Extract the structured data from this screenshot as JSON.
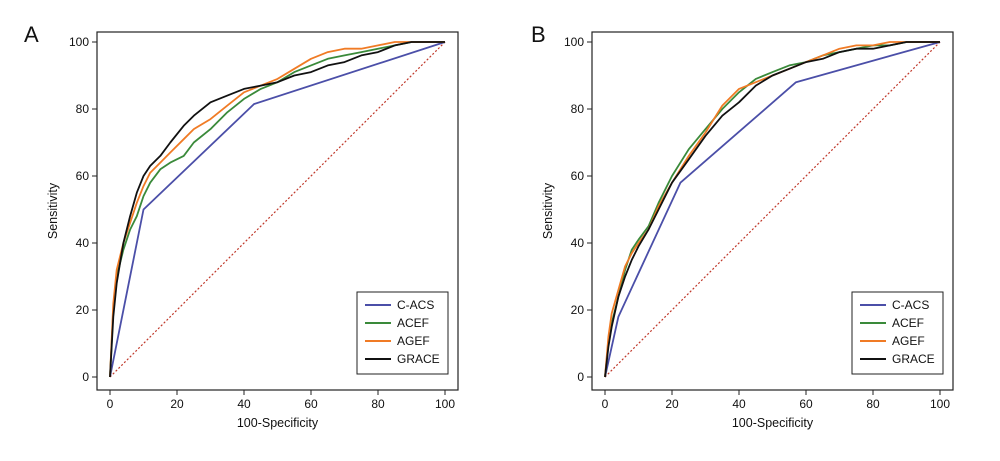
{
  "colors": {
    "C-ACS": "#4b4fa8",
    "ACEF": "#3a8a3a",
    "AGEF": "#f07b25",
    "GRACE": "#111111",
    "reference": "#c0392b",
    "axis": "#222222"
  },
  "chart_data": [
    {
      "type": "line",
      "panel_label": "A",
      "title": "",
      "xlabel": "100-Specificity",
      "ylabel": "Sensitivity",
      "xlim": [
        0,
        100
      ],
      "ylim": [
        0,
        100
      ],
      "xticks": [
        "0",
        "20",
        "40",
        "60",
        "80",
        "100"
      ],
      "yticks": [
        "0",
        "20",
        "40",
        "60",
        "80",
        "100"
      ],
      "grid": false,
      "legend_position": "bottom-right",
      "reference_line": {
        "x": [
          0,
          100
        ],
        "y": [
          0,
          100
        ],
        "style": "dotted"
      },
      "series": [
        {
          "name": "C-ACS",
          "x": [
            0,
            10,
            43,
            100
          ],
          "y": [
            0,
            50,
            81.5,
            100
          ]
        },
        {
          "name": "ACEF",
          "x": [
            0,
            1,
            2,
            4,
            6,
            8,
            10,
            12,
            15,
            18,
            22,
            25,
            30,
            35,
            40,
            45,
            50,
            55,
            60,
            65,
            70,
            75,
            80,
            85,
            90,
            95,
            100
          ],
          "y": [
            0,
            20,
            30,
            38,
            44,
            48,
            54,
            58,
            62,
            64,
            66,
            70,
            74,
            79,
            83,
            86,
            88,
            91,
            93,
            95,
            96,
            97,
            98,
            99,
            100,
            100,
            100
          ]
        },
        {
          "name": "AGEF",
          "x": [
            0,
            1,
            2,
            4,
            6,
            8,
            10,
            12,
            15,
            18,
            22,
            25,
            30,
            35,
            40,
            45,
            50,
            55,
            60,
            65,
            70,
            75,
            80,
            85,
            90,
            95,
            100
          ],
          "y": [
            0,
            22,
            32,
            40,
            46,
            52,
            57,
            61,
            64,
            67,
            71,
            74,
            77,
            81,
            85,
            87,
            89,
            92,
            95,
            97,
            98,
            98,
            99,
            100,
            100,
            100,
            100
          ]
        },
        {
          "name": "GRACE",
          "x": [
            0,
            1,
            2,
            4,
            6,
            8,
            10,
            12,
            15,
            18,
            22,
            25,
            30,
            35,
            40,
            45,
            50,
            55,
            60,
            65,
            70,
            75,
            80,
            85,
            90,
            95,
            100
          ],
          "y": [
            0,
            18,
            28,
            40,
            48,
            55,
            60,
            63,
            66,
            70,
            75,
            78,
            82,
            84,
            86,
            87,
            88,
            90,
            91,
            93,
            94,
            96,
            97,
            99,
            100,
            100,
            100
          ]
        }
      ]
    },
    {
      "type": "line",
      "panel_label": "B",
      "title": "",
      "xlabel": "100-Specificity",
      "ylabel": "Sensitivity",
      "xlim": [
        0,
        100
      ],
      "ylim": [
        0,
        100
      ],
      "xticks": [
        "0",
        "20",
        "40",
        "60",
        "80",
        "100"
      ],
      "yticks": [
        "0",
        "20",
        "40",
        "60",
        "80",
        "100"
      ],
      "grid": false,
      "legend_position": "bottom-right",
      "reference_line": {
        "x": [
          0,
          100
        ],
        "y": [
          0,
          100
        ],
        "style": "dotted"
      },
      "series": [
        {
          "name": "C-ACS",
          "x": [
            0,
            4,
            22.5,
            57,
            100
          ],
          "y": [
            0,
            18,
            58,
            88,
            100
          ]
        },
        {
          "name": "ACEF",
          "x": [
            0,
            1,
            2,
            4,
            6,
            8,
            10,
            13,
            16,
            20,
            25,
            30,
            35,
            40,
            45,
            50,
            55,
            60,
            65,
            70,
            75,
            80,
            85,
            90,
            95,
            100
          ],
          "y": [
            0,
            10,
            16,
            24,
            32,
            38,
            41,
            45,
            52,
            60,
            68,
            74,
            80,
            85,
            89,
            91,
            93,
            94,
            96,
            97,
            98,
            99,
            99,
            100,
            100,
            100
          ]
        },
        {
          "name": "AGEF",
          "x": [
            0,
            1,
            2,
            4,
            6,
            8,
            10,
            13,
            16,
            20,
            25,
            30,
            35,
            40,
            45,
            50,
            55,
            60,
            65,
            70,
            75,
            80,
            85,
            90,
            95,
            100
          ],
          "y": [
            0,
            12,
            19,
            26,
            33,
            37,
            40,
            44,
            51,
            58,
            66,
            73,
            81,
            86,
            88,
            90,
            92,
            94,
            96,
            98,
            99,
            99,
            100,
            100,
            100,
            100
          ]
        },
        {
          "name": "GRACE",
          "x": [
            0,
            1,
            2,
            4,
            6,
            8,
            10,
            13,
            16,
            20,
            25,
            30,
            35,
            40,
            45,
            50,
            55,
            60,
            65,
            70,
            75,
            80,
            85,
            90,
            95,
            100
          ],
          "y": [
            0,
            9,
            15,
            24,
            30,
            35,
            39,
            44,
            50,
            58,
            65,
            72,
            78,
            82,
            87,
            90,
            92,
            94,
            95,
            97,
            98,
            98,
            99,
            100,
            100,
            100
          ]
        }
      ]
    }
  ]
}
